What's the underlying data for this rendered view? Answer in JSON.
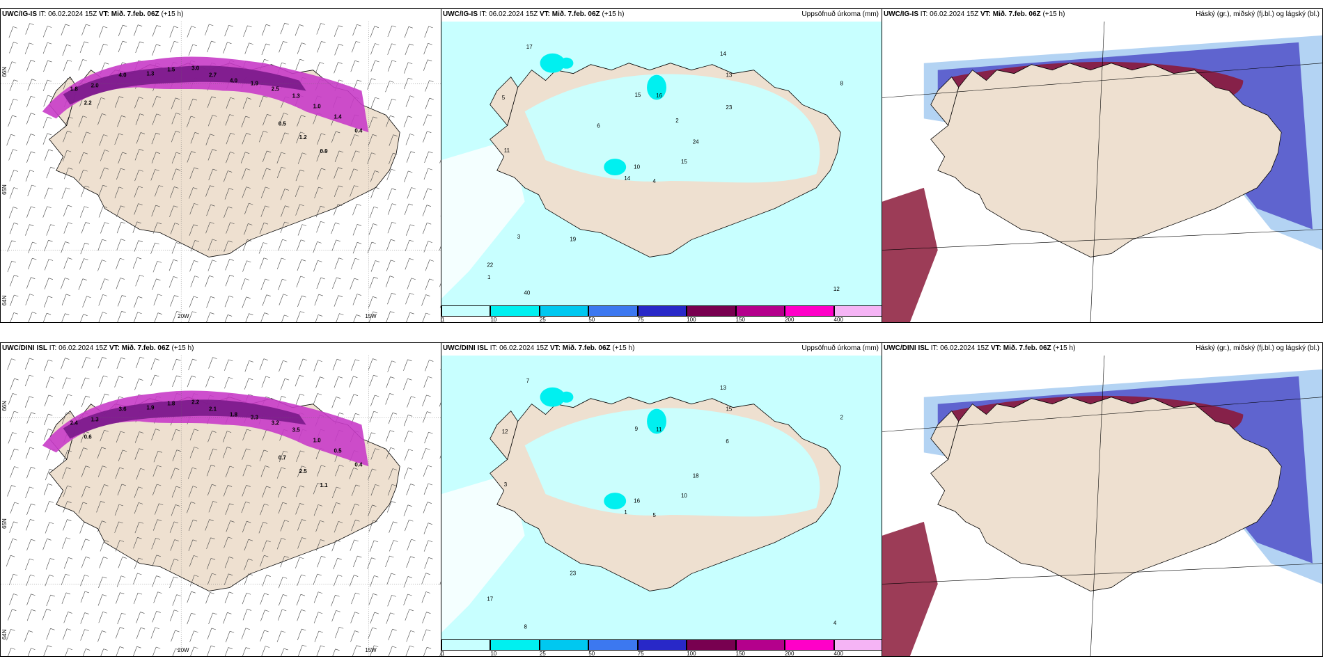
{
  "panels": [
    {
      "row": "top",
      "model": "UWC/IG-IS",
      "it_label": "IT:",
      "it_value": "06.02.2024 15Z",
      "vt_label": "VT:",
      "vt_value": "Mið. 7.feb. 06Z",
      "lead": "(+15 h)",
      "right_title": "",
      "type": "wind",
      "lon_labels": [
        "20W",
        "15W"
      ],
      "lat_labels": [
        "66N",
        "65N",
        "64N"
      ],
      "values": [
        "1.8",
        "2.0",
        "4.0",
        "1.3",
        "1.5",
        "3.0",
        "2.7",
        "4.0",
        "1.9",
        "2.5",
        "1.3",
        "1.0",
        "1.4",
        "0.4",
        "0.5",
        "1.2",
        "0.9",
        "2.2"
      ]
    },
    {
      "row": "top",
      "model": "UWC/IG-IS",
      "it_label": "IT:",
      "it_value": "06.02.2024 15Z",
      "vt_label": "VT:",
      "vt_value": "Mið. 7.feb. 06Z",
      "lead": "(+15 h)",
      "right_title": "Uppsöfnuð úrkoma (mm)",
      "type": "precip",
      "values": [
        "4",
        "5",
        "10",
        "22",
        "24",
        "19",
        "14",
        "16",
        "13",
        "15",
        "17",
        "12",
        "11",
        "8",
        "14",
        "23",
        "40",
        "15",
        "2",
        "3",
        "6",
        "1"
      ]
    },
    {
      "row": "top",
      "model": "UWC/IG-IS",
      "it_label": "IT:",
      "it_value": "06.02.2024 15Z",
      "vt_label": "VT:",
      "vt_value": "Mið. 7.feb. 06Z",
      "lead": "(+15 h)",
      "right_title": "Háský (gr.), miðský (fj.bl.) og lágský (bl.)",
      "type": "cloud"
    },
    {
      "row": "bottom",
      "model": "UWC/DINI ISL",
      "it_label": "IT:",
      "it_value": "06.02.2024 15Z",
      "vt_label": "VT:",
      "vt_value": "Mið. 7.feb. 06Z",
      "lead": "(+15 h)",
      "right_title": "",
      "type": "wind",
      "lon_labels": [
        "20W",
        "15W"
      ],
      "lat_labels": [
        "66N",
        "65N",
        "64N"
      ],
      "values": [
        "2.4",
        "1.3",
        "3.6",
        "1.9",
        "1.8",
        "2.2",
        "2.1",
        "1.8",
        "3.3",
        "3.2",
        "3.5",
        "1.0",
        "0.5",
        "0.4",
        "0.7",
        "2.5",
        "1.1",
        "0.6"
      ]
    },
    {
      "row": "bottom",
      "model": "UWC/DINI ISL",
      "it_label": "IT:",
      "it_value": "06.02.2024 15Z",
      "vt_label": "VT:",
      "vt_value": "Mið. 7.feb. 06Z",
      "lead": "(+15 h)",
      "right_title": "Uppsöfnuð úrkoma (mm)",
      "type": "precip",
      "values": [
        "5",
        "12",
        "16",
        "17",
        "18",
        "23",
        "13",
        "11",
        "15",
        "10",
        "7",
        "4",
        "3",
        "2",
        "1",
        "6",
        "8",
        "9"
      ]
    },
    {
      "row": "bottom",
      "model": "UWC/DINI ISL",
      "it_label": "IT:",
      "it_value": "06.02.2024 15Z",
      "vt_label": "VT:",
      "vt_value": "Mið. 7.feb. 06Z",
      "lead": "(+15 h)",
      "right_title": "Háský (gr.), miðský (fj.bl.) og lágský (bl.)",
      "type": "cloud"
    }
  ],
  "precip_colorbar": {
    "labels": [
      "1",
      "10",
      "25",
      "50",
      "75",
      "100",
      "150",
      "200",
      "400"
    ],
    "colors": [
      "#c8ffff",
      "#00f0f0",
      "#00c8f0",
      "#3c78f0",
      "#2828c8",
      "#780050",
      "#b4008c",
      "#ff00c8",
      "#f5b4f5"
    ]
  },
  "colors": {
    "land": "#eee0d0",
    "sea": "#ffffff",
    "wind_magenta": "#c83cc8",
    "wind_dark": "#7a1a8a",
    "precip_light": "#c8ffff",
    "precip_cyan": "#00f0f0",
    "cloud_high_red": "#8b1a3a",
    "cloud_mid_blue": "#5050c8",
    "cloud_low_lightblue": "#a0c8f0"
  }
}
